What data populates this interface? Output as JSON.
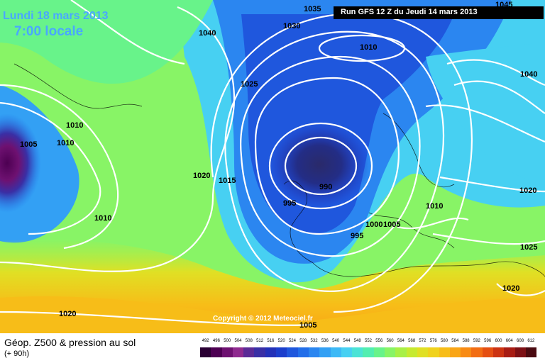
{
  "header": {
    "date": "Lundi 18 mars 2013",
    "time": "7:00 locale",
    "run": "Run GFS 12 Z du Jeudi 14 mars 2013"
  },
  "copyright": "Copyright © 2012 Meteociel.fr",
  "footer": {
    "field": "Géop. Z500 & pression au sol",
    "forecast": "(+ 90h)"
  },
  "legend": {
    "values": [
      "492",
      "496",
      "500",
      "504",
      "508",
      "512",
      "516",
      "520",
      "524",
      "528",
      "532",
      "536",
      "540",
      "544",
      "548",
      "552",
      "556",
      "560",
      "564",
      "568",
      "572",
      "576",
      "580",
      "584",
      "588",
      "592",
      "596",
      "600",
      "604",
      "608",
      "612"
    ],
    "colors": [
      "#2a0033",
      "#4d0052",
      "#6e1171",
      "#8f2a8f",
      "#5b2a96",
      "#3a2fa5",
      "#2331b8",
      "#1b3ecc",
      "#1f57dd",
      "#226ee9",
      "#2b86f0",
      "#33a0f4",
      "#3db9f6",
      "#47d0f2",
      "#4be3d6",
      "#52eeb0",
      "#68f38a",
      "#88f466",
      "#a8f046",
      "#c6ea30",
      "#e0e024",
      "#f0d21c",
      "#f7bd18",
      "#f9a516",
      "#f88b14",
      "#f26d13",
      "#e54f12",
      "#cc3312",
      "#a81c14",
      "#7d1015",
      "#4a0a10"
    ]
  },
  "isobars": [
    "1035",
    "1045",
    "1040",
    "1030",
    "1010",
    "1025",
    "1040",
    "1005",
    "1010",
    "1010",
    "1020",
    "1015",
    "990",
    "995",
    "1010",
    "1020",
    "1000",
    "1005",
    "995",
    "1010",
    "1025",
    "1020",
    "1020",
    "1005"
  ]
}
